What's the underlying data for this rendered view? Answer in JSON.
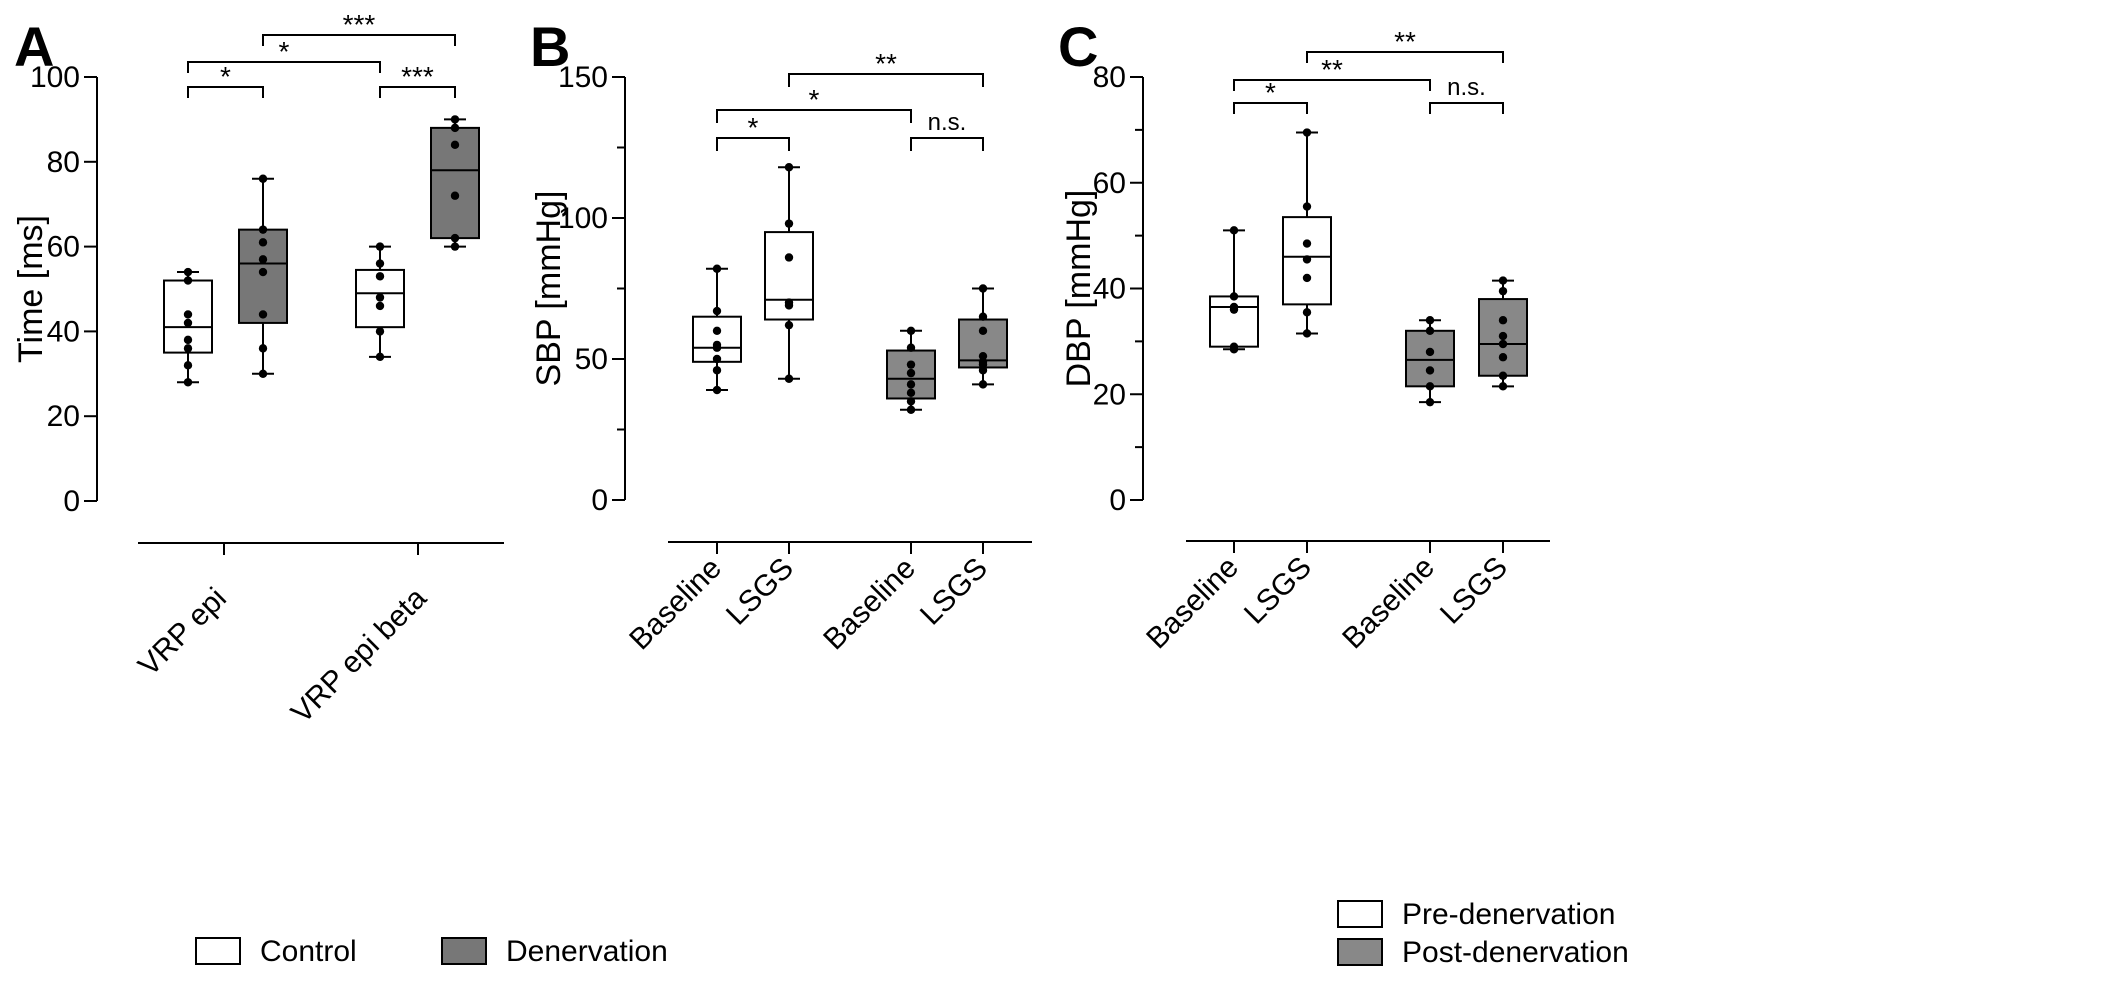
{
  "chart_data": [
    {
      "type": "box",
      "panel": "A",
      "ylabel": "Time [ms]",
      "ylim": [
        0,
        100
      ],
      "yticks": [
        "0",
        "20",
        "40",
        "60",
        "80",
        "100"
      ],
      "categories": [
        "VRP epi",
        "VRP epi beta"
      ],
      "series_names": [
        "Control",
        "Denervation"
      ],
      "boxes": [
        {
          "category": "VRP epi",
          "series": "Control",
          "min": 28,
          "q1": 35,
          "median": 41,
          "q3": 52,
          "max": 54,
          "points": [
            28,
            32,
            36,
            38,
            42,
            44,
            52,
            54
          ]
        },
        {
          "category": "VRP epi",
          "series": "Denervation",
          "min": 30,
          "q1": 42,
          "median": 56,
          "q3": 64,
          "max": 76,
          "points": [
            30,
            36,
            44,
            54,
            57,
            61,
            64,
            76
          ]
        },
        {
          "category": "VRP epi beta",
          "series": "Control",
          "min": 34,
          "q1": 41,
          "median": 49,
          "q3": 54.5,
          "max": 60,
          "points": [
            34,
            40,
            46,
            48,
            53,
            56,
            60
          ]
        },
        {
          "category": "VRP epi beta",
          "series": "Denervation",
          "min": 60,
          "q1": 62,
          "median": 78,
          "q3": 88,
          "max": 90,
          "points": [
            60,
            62,
            72,
            84,
            88,
            90
          ]
        }
      ],
      "brackets": [
        {
          "from": 0,
          "to": 1,
          "label": "*"
        },
        {
          "from": 0,
          "to": 2,
          "label": "*"
        },
        {
          "from": 2,
          "to": 3,
          "label": "***"
        },
        {
          "from": 1,
          "to": 3,
          "label": "***"
        }
      ]
    },
    {
      "type": "box",
      "panel": "B",
      "ylabel": "SBP [mmHg]",
      "ylim": [
        0,
        150
      ],
      "yticks": [
        "0",
        "50",
        "100",
        "150"
      ],
      "categories": [
        "Baseline",
        "LSGS",
        "Baseline",
        "LSGS"
      ],
      "series_names": [
        "Pre-denervation",
        "Pre-denervation",
        "Post-denervation",
        "Post-denervation"
      ],
      "boxes": [
        {
          "category": "Baseline",
          "series": "Pre-denervation",
          "min": 39,
          "q1": 49,
          "median": 54,
          "q3": 65,
          "max": 82,
          "points": [
            39,
            46,
            50,
            54,
            55,
            60,
            67,
            82
          ]
        },
        {
          "category": "LSGS",
          "series": "Pre-denervation",
          "min": 43,
          "q1": 64,
          "median": 71,
          "q3": 95,
          "max": 118,
          "points": [
            43,
            62,
            69,
            70,
            86,
            98,
            118
          ]
        },
        {
          "category": "Baseline",
          "series": "Post-denervation",
          "min": 32,
          "q1": 36,
          "median": 43,
          "q3": 53,
          "max": 60,
          "points": [
            32,
            35,
            38,
            41,
            45,
            48,
            54,
            60
          ]
        },
        {
          "category": "LSGS",
          "series": "Post-denervation",
          "min": 41,
          "q1": 47,
          "median": 49.5,
          "q3": 64,
          "max": 75,
          "points": [
            41,
            46,
            48,
            49,
            51,
            60,
            65,
            75
          ]
        }
      ],
      "brackets": [
        {
          "from": 0,
          "to": 1,
          "label": "*"
        },
        {
          "from": 0,
          "to": 2,
          "label": "*"
        },
        {
          "from": 2,
          "to": 3,
          "label": "n.s."
        },
        {
          "from": 1,
          "to": 3,
          "label": "**"
        }
      ]
    },
    {
      "type": "box",
      "panel": "C",
      "ylabel": "DBP [mmHg]",
      "ylim": [
        0,
        80
      ],
      "yticks": [
        "0",
        "20",
        "40",
        "60",
        "80"
      ],
      "categories": [
        "Baseline",
        "LSGS",
        "Baseline",
        "LSGS"
      ],
      "series_names": [
        "Pre-denervation",
        "Pre-denervation",
        "Post-denervation",
        "Post-denervation"
      ],
      "boxes": [
        {
          "category": "Baseline",
          "series": "Pre-denervation",
          "min": 28.5,
          "q1": 29,
          "median": 36.5,
          "q3": 38.5,
          "max": 51,
          "points": [
            28.5,
            29,
            36,
            36.5,
            38.5,
            51
          ]
        },
        {
          "category": "LSGS",
          "series": "Pre-denervation",
          "min": 31.5,
          "q1": 37,
          "median": 46,
          "q3": 53.5,
          "max": 69.5,
          "points": [
            31.5,
            35.5,
            42,
            45.5,
            48.5,
            55.5,
            69.5
          ]
        },
        {
          "category": "Baseline",
          "series": "Post-denervation",
          "min": 18.5,
          "q1": 21.5,
          "median": 26.5,
          "q3": 32,
          "max": 34,
          "points": [
            18.5,
            21.5,
            24.5,
            28,
            32,
            34
          ]
        },
        {
          "category": "LSGS",
          "series": "Post-denervation",
          "min": 21.5,
          "q1": 23.5,
          "median": 29.5,
          "q3": 38,
          "max": 41.5,
          "points": [
            21.5,
            23.5,
            27,
            29.5,
            31,
            34,
            39.5,
            41.5
          ]
        }
      ],
      "brackets": [
        {
          "from": 0,
          "to": 1,
          "label": "*"
        },
        {
          "from": 0,
          "to": 2,
          "label": "**"
        },
        {
          "from": 2,
          "to": 3,
          "label": "n.s."
        },
        {
          "from": 1,
          "to": 3,
          "label": "**"
        }
      ]
    }
  ],
  "legends": {
    "panel_a": [
      {
        "label": "Control",
        "color": "#ffffff"
      },
      {
        "label": "Denervation",
        "color": "#777777"
      }
    ],
    "panels_bc": [
      {
        "label": "Pre-denervation",
        "color": "#ffffff"
      },
      {
        "label": "Post-denervation",
        "color": "#888888"
      }
    ]
  },
  "colors": {
    "white_box": "#ffffff",
    "dark_box_a": "#777777",
    "dark_box_bc": "#888888",
    "ink": "#000000"
  }
}
